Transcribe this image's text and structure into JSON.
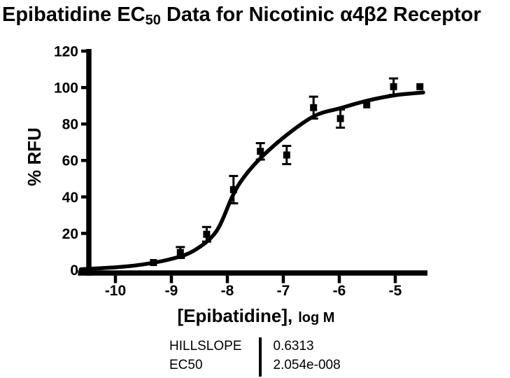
{
  "title": {
    "pre_sub": "Epibatidine EC",
    "sub": "50",
    "post_sub": " Data for Nicotinic α4β2 Receptor"
  },
  "colors": {
    "foreground": "#000000",
    "background": "#ffffff"
  },
  "chart_data": {
    "type": "scatter",
    "title": "Epibatidine EC50 Data for Nicotinic α4β2 Receptor",
    "xlabel": "[Epibatidine], log M",
    "xlabel_main": "[Epibatidine],",
    "xlabel_suffix": "log M",
    "ylabel": "% RFU",
    "xlim": [
      -10.66,
      -4.43
    ],
    "ylim": [
      0,
      120
    ],
    "xticks": [
      -10,
      -9,
      -8,
      -7,
      -6,
      -5
    ],
    "yticks": [
      0,
      20,
      40,
      60,
      80,
      100,
      120
    ],
    "grid": false,
    "legend": "none",
    "marker": "filled-square",
    "color": "#000000",
    "points": [
      {
        "x": -9.32,
        "y": 4,
        "err": 0
      },
      {
        "x": -8.84,
        "y": 9.5,
        "err": 3
      },
      {
        "x": -8.37,
        "y": 19.5,
        "err": 4
      },
      {
        "x": -7.89,
        "y": 44,
        "err": 7.5
      },
      {
        "x": -7.41,
        "y": 65,
        "err": 4.5
      },
      {
        "x": -6.94,
        "y": 63,
        "err": 5
      },
      {
        "x": -6.46,
        "y": 89,
        "err": 6
      },
      {
        "x": -5.98,
        "y": 83,
        "err": 5
      },
      {
        "x": -5.51,
        "y": 90.5,
        "err": 0
      },
      {
        "x": -5.03,
        "y": 100.5,
        "err": 4.5
      },
      {
        "x": -4.56,
        "y": 100.5,
        "err": 0
      }
    ],
    "fit_curve": {
      "model": "sigmoidal dose-response (variable slope)",
      "hillslope": 0.6313,
      "ec50": "2.054e-008",
      "logEC50": -7.687,
      "bottom": 0,
      "top": 100,
      "trace": [
        [
          -10.62,
          0.3
        ],
        [
          -10.0,
          1.4
        ],
        [
          -9.5,
          3.0
        ],
        [
          -9.0,
          6.0
        ],
        [
          -8.6,
          10.5
        ],
        [
          -8.2,
          21
        ],
        [
          -7.9,
          41
        ],
        [
          -7.69,
          51.4
        ],
        [
          -7.4,
          61.5
        ],
        [
          -6.94,
          74
        ],
        [
          -6.44,
          84.5
        ],
        [
          -5.98,
          88.7
        ],
        [
          -5.5,
          92.8
        ],
        [
          -5.0,
          95.8
        ],
        [
          -4.5,
          97.3
        ]
      ]
    }
  },
  "results_table": {
    "rows": [
      {
        "label": "HILLSLOPE",
        "value": "0.6313"
      },
      {
        "label": "EC50",
        "value": "2.054e-008"
      }
    ]
  }
}
